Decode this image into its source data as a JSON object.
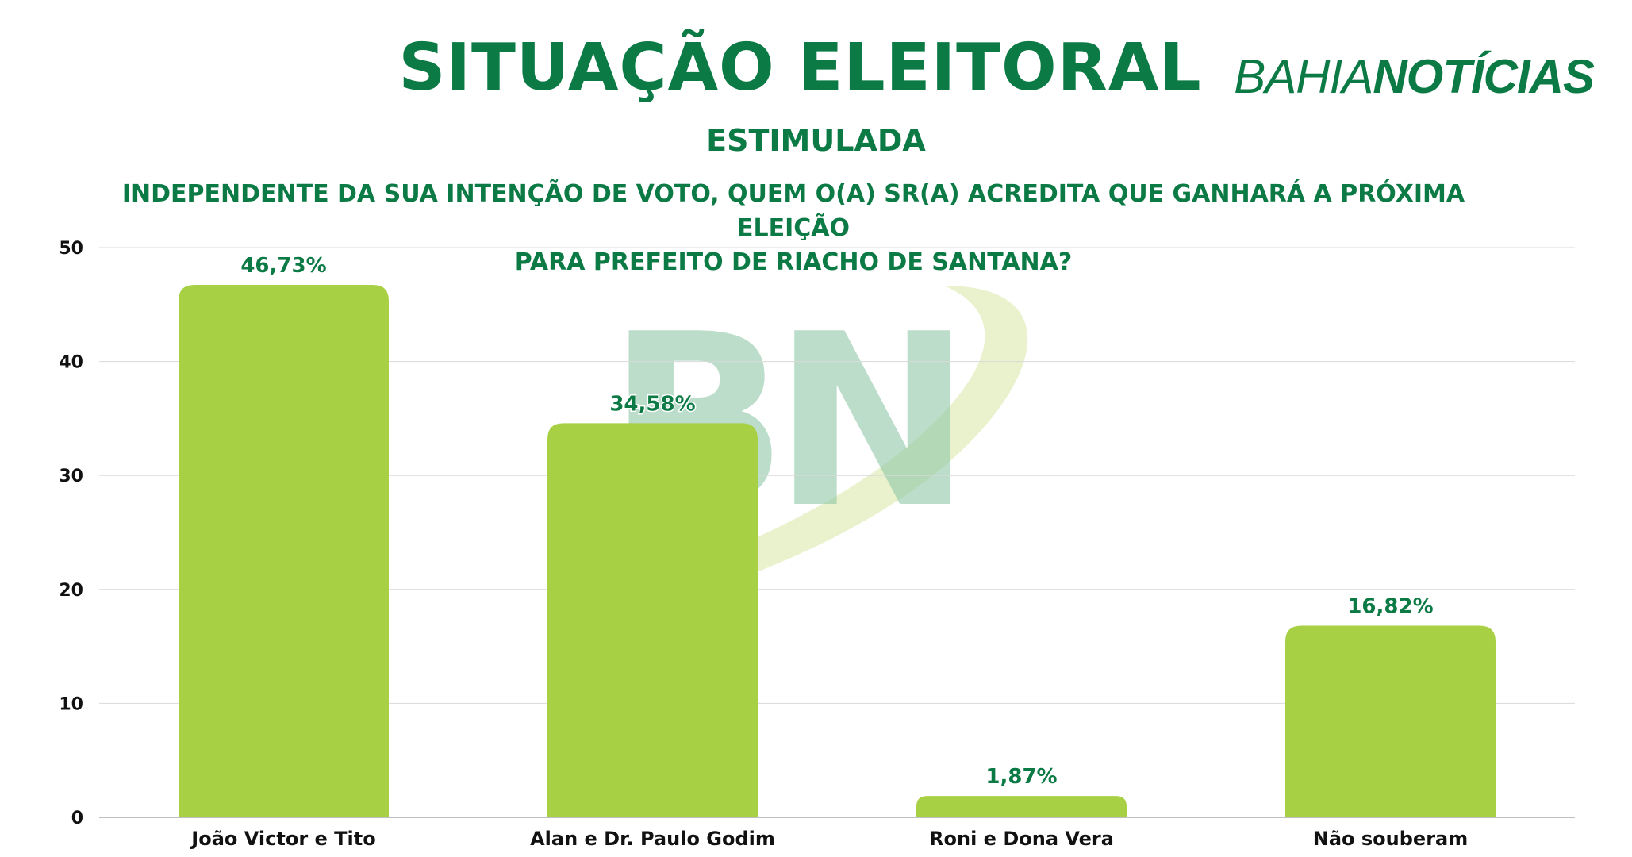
{
  "header": {
    "title": "SITUAÇÃO ELEITORAL",
    "subtitle": "ESTIMULADA",
    "question_line1": "INDEPENDENTE DA SUA INTENÇÃO DE VOTO, QUEM O(A) SR(A) ACREDITA QUE GANHARÁ A PRÓXIMA ELEIÇÃO",
    "question_line2": "PARA PREFEITO DE RIACHO DE SANTANA?",
    "logo_light": "BAHIA",
    "logo_bold": "NOTÍCIAS",
    "watermark": "BN"
  },
  "colors": {
    "title": "#0b7a45",
    "bar": "#a8d045",
    "data_label": "#0b7a45",
    "grid": "#d9d9d9"
  },
  "chart_data": {
    "type": "bar",
    "categories": [
      "João Victor e Tito",
      "Alan e Dr. Paulo Godim",
      "Roni e Dona Vera",
      "Não souberam"
    ],
    "values": [
      46.73,
      34.58,
      1.87,
      16.82
    ],
    "data_labels": [
      "46,73%",
      "34,58%",
      "1,87%",
      "16,82%"
    ],
    "yticks": [
      "0",
      "10",
      "20",
      "30",
      "40",
      "50"
    ],
    "ylim": [
      0,
      50
    ],
    "grid": true,
    "legend": "none"
  }
}
